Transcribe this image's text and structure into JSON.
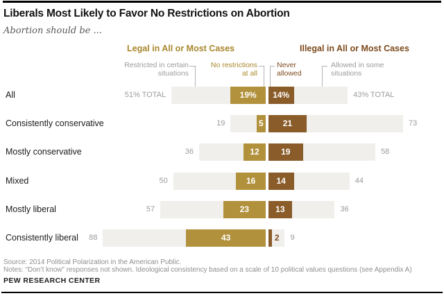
{
  "page": {
    "title": "Liberals Most Likely to Favor No Restrictions on Abortion",
    "subtitle": "Abortion should be ...",
    "source_line": "Source: 2014 Political Polarization in the American Public.",
    "notes_line": "Notes: “Don’t know” responses not shown. Ideological consistency based on a scale of 10 political values questions (see Appendix A)",
    "brand": "PEW RESEARCH CENTER"
  },
  "headers": {
    "legal": "Legal in All or Most Cases",
    "illegal": "Illegal in All or Most Cases"
  },
  "annotations": {
    "restricted": {
      "line1": "Restricted in certain",
      "line2": "situations"
    },
    "no_restrictions": {
      "line1": "No restrictions",
      "line2": "at all"
    },
    "never_allowed": {
      "line1": "Never",
      "line2": "allowed"
    },
    "allowed_some": {
      "line1": "Allowed in some",
      "line2": "situations"
    }
  },
  "colors": {
    "gold_bar": "#b2913c",
    "brown_bar": "#8a5c29",
    "gold_text": "#a8872c",
    "brown_text": "#7d4a1d",
    "gray_bar": "#f0efec",
    "muted_text": "#9b9b9b",
    "value_text": "#ffffff"
  },
  "chart_data": {
    "type": "bar",
    "variant": "diverging stacked horizontal",
    "title": "Liberals Most Likely to Favor No Restrictions on Abortion",
    "subtitle": "Abortion should be ...",
    "group_headers": [
      "Legal in All or Most Cases",
      "Illegal in All or Most Cases"
    ],
    "segment_order": [
      "Restricted in certain situations",
      "No restrictions at all",
      "Never allowed",
      "Allowed in some situations"
    ],
    "axis": "percent of each group, diverging around legal/illegal split",
    "rows": [
      {
        "category": "All",
        "legal_total": 51,
        "restricted": 32,
        "no_restrictions": 19,
        "never_allowed": 14,
        "allowed_some": 29,
        "illegal_total": 43,
        "left_label": "51% TOTAL",
        "no_restrictions_label": "19%",
        "never_allowed_label": "14%",
        "right_label": "43% TOTAL"
      },
      {
        "category": "Consistently conservative",
        "legal_total": 19,
        "restricted": 14,
        "no_restrictions": 5,
        "never_allowed": 21,
        "allowed_some": 52,
        "illegal_total": 73,
        "left_label": "19",
        "no_restrictions_label": "5",
        "never_allowed_label": "21",
        "right_label": "73"
      },
      {
        "category": "Mostly conservative",
        "legal_total": 36,
        "restricted": 24,
        "no_restrictions": 12,
        "never_allowed": 19,
        "allowed_some": 39,
        "illegal_total": 58,
        "left_label": "36",
        "no_restrictions_label": "12",
        "never_allowed_label": "19",
        "right_label": "58"
      },
      {
        "category": "Mixed",
        "legal_total": 50,
        "restricted": 34,
        "no_restrictions": 16,
        "never_allowed": 14,
        "allowed_some": 30,
        "illegal_total": 44,
        "left_label": "50",
        "no_restrictions_label": "16",
        "never_allowed_label": "14",
        "right_label": "44"
      },
      {
        "category": "Mostly liberal",
        "legal_total": 57,
        "restricted": 34,
        "no_restrictions": 23,
        "never_allowed": 13,
        "allowed_some": 23,
        "illegal_total": 36,
        "left_label": "57",
        "no_restrictions_label": "23",
        "never_allowed_label": "13",
        "right_label": "36"
      },
      {
        "category": "Consistently liberal",
        "legal_total": 88,
        "restricted": 45,
        "no_restrictions": 43,
        "never_allowed": 2,
        "allowed_some": 7,
        "illegal_total": 9,
        "left_label": "88",
        "no_restrictions_label": "43",
        "never_allowed_label": "2",
        "right_label": "9"
      }
    ]
  }
}
